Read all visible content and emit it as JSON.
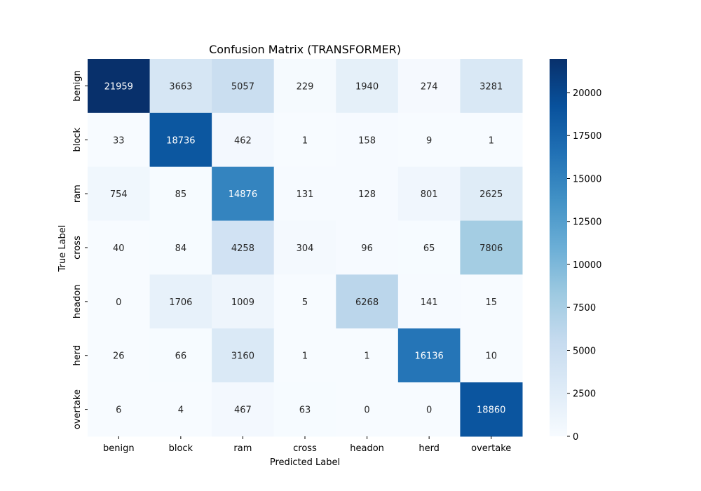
{
  "chart_data": {
    "type": "heatmap",
    "title": "Confusion Matrix (TRANSFORMER)",
    "xlabel": "Predicted Label",
    "ylabel": "True Label",
    "x_categories": [
      "benign",
      "block",
      "ram",
      "cross",
      "headon",
      "herd",
      "overtake"
    ],
    "y_categories": [
      "benign",
      "block",
      "ram",
      "cross",
      "headon",
      "herd",
      "overtake"
    ],
    "matrix": [
      [
        21959,
        3663,
        5057,
        229,
        1940,
        274,
        3281
      ],
      [
        33,
        18736,
        462,
        1,
        158,
        9,
        1
      ],
      [
        754,
        85,
        14876,
        131,
        128,
        801,
        2625
      ],
      [
        40,
        84,
        4258,
        304,
        96,
        65,
        7806
      ],
      [
        0,
        1706,
        1009,
        5,
        6268,
        141,
        15
      ],
      [
        26,
        66,
        3160,
        1,
        1,
        16136,
        10
      ],
      [
        6,
        4,
        467,
        63,
        0,
        0,
        18860
      ]
    ],
    "colorscale": "Blues",
    "vmin": 0,
    "vmax": 21959,
    "colorbar_ticks": [
      "0",
      "2500",
      "5000",
      "7500",
      "10000",
      "12500",
      "15000",
      "17500",
      "20000"
    ],
    "colorbar_tick_values": [
      0,
      2500,
      5000,
      7500,
      10000,
      12500,
      15000,
      17500,
      20000
    ]
  }
}
